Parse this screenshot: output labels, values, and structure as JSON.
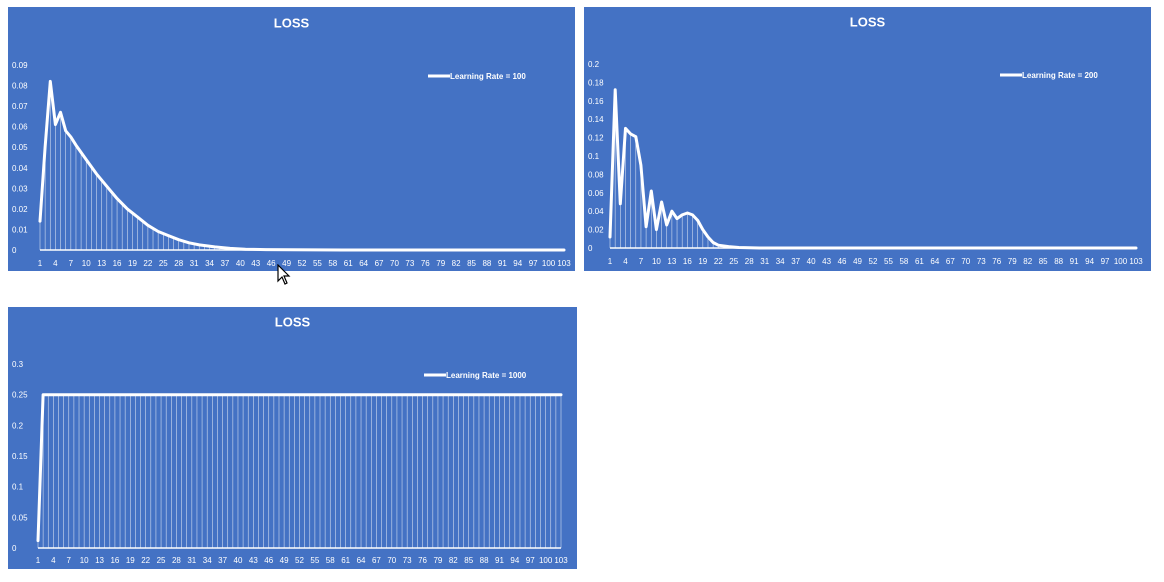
{
  "colors": {
    "panel": "#4472c4",
    "foreground": "#ffffff",
    "background": "#ffffff"
  },
  "icons": {
    "cursor": "mouse-pointer-icon"
  },
  "chart_data": [
    {
      "type": "line",
      "title": "LOSS",
      "legend": "top-right",
      "xlabel": "",
      "ylabel": "",
      "x_range": [
        1,
        103
      ],
      "ylim": [
        0,
        0.09
      ],
      "y_ticks": [
        "0",
        "0.01",
        "0.02",
        "0.03",
        "0.04",
        "0.05",
        "0.06",
        "0.07",
        "0.08",
        "0.09"
      ],
      "x_ticks": [
        "1",
        "4",
        "7",
        "10",
        "13",
        "16",
        "19",
        "22",
        "25",
        "28",
        "31",
        "34",
        "37",
        "40",
        "43",
        "46",
        "49",
        "52",
        "55",
        "58",
        "61",
        "64",
        "67",
        "70",
        "73",
        "76",
        "79",
        "82",
        "85",
        "88",
        "91",
        "94",
        "97",
        "100",
        "103"
      ],
      "series": [
        {
          "name": "Learning Rate = 100",
          "points": [
            [
              1,
              0.014
            ],
            [
              2,
              0.05
            ],
            [
              3,
              0.082
            ],
            [
              4,
              0.061
            ],
            [
              5,
              0.067
            ],
            [
              6,
              0.058
            ],
            [
              7,
              0.055
            ],
            [
              8,
              0.051
            ],
            [
              10,
              0.044
            ],
            [
              12,
              0.037
            ],
            [
              14,
              0.031
            ],
            [
              16,
              0.025
            ],
            [
              18,
              0.02
            ],
            [
              20,
              0.016
            ],
            [
              22,
              0.012
            ],
            [
              24,
              0.009
            ],
            [
              26,
              0.007
            ],
            [
              28,
              0.005
            ],
            [
              30,
              0.0035
            ],
            [
              32,
              0.0025
            ],
            [
              35,
              0.0015
            ],
            [
              38,
              0.0008
            ],
            [
              41,
              0.0004
            ],
            [
              45,
              0.0002
            ],
            [
              50,
              0.0001
            ],
            [
              60,
              0
            ],
            [
              103,
              0
            ]
          ]
        }
      ]
    },
    {
      "type": "line",
      "title": "LOSS",
      "legend": "top-right",
      "xlabel": "",
      "ylabel": "",
      "x_range": [
        1,
        103
      ],
      "ylim": [
        0,
        0.2
      ],
      "y_ticks": [
        "0",
        "0.02",
        "0.04",
        "0.06",
        "0.08",
        "0.1",
        "0.12",
        "0.14",
        "0.16",
        "0.18",
        "0.2"
      ],
      "x_ticks": [
        "1",
        "4",
        "7",
        "10",
        "13",
        "16",
        "19",
        "22",
        "25",
        "28",
        "31",
        "34",
        "37",
        "40",
        "43",
        "46",
        "49",
        "52",
        "55",
        "58",
        "61",
        "64",
        "67",
        "70",
        "73",
        "76",
        "79",
        "82",
        "85",
        "88",
        "91",
        "94",
        "97",
        "100",
        "103"
      ],
      "series": [
        {
          "name": "Learning Rate = 200",
          "points": [
            [
              1,
              0.012
            ],
            [
              2,
              0.172
            ],
            [
              3,
              0.048
            ],
            [
              4,
              0.13
            ],
            [
              5,
              0.124
            ],
            [
              6,
              0.121
            ],
            [
              7,
              0.09
            ],
            [
              8,
              0.023
            ],
            [
              9,
              0.062
            ],
            [
              10,
              0.02
            ],
            [
              11,
              0.05
            ],
            [
              12,
              0.025
            ],
            [
              13,
              0.04
            ],
            [
              14,
              0.032
            ],
            [
              15,
              0.036
            ],
            [
              16,
              0.038
            ],
            [
              17,
              0.036
            ],
            [
              18,
              0.03
            ],
            [
              19,
              0.02
            ],
            [
              20,
              0.012
            ],
            [
              21,
              0.006
            ],
            [
              22,
              0.003
            ],
            [
              24,
              0.0015
            ],
            [
              26,
              0.0005
            ],
            [
              30,
              0
            ],
            [
              103,
              0
            ]
          ]
        }
      ]
    },
    {
      "type": "line",
      "title": "LOSS",
      "legend": "top-right",
      "xlabel": "",
      "ylabel": "",
      "x_range": [
        1,
        103
      ],
      "ylim": [
        0,
        0.3
      ],
      "y_ticks": [
        "0",
        "0.05",
        "0.1",
        "0.15",
        "0.2",
        "0.25",
        "0.3"
      ],
      "x_ticks": [
        "1",
        "4",
        "7",
        "10",
        "13",
        "16",
        "19",
        "22",
        "25",
        "28",
        "31",
        "34",
        "37",
        "40",
        "43",
        "46",
        "49",
        "52",
        "55",
        "58",
        "61",
        "64",
        "67",
        "70",
        "73",
        "76",
        "79",
        "82",
        "85",
        "88",
        "91",
        "94",
        "97",
        "100",
        "103"
      ],
      "series": [
        {
          "name": "Learning Rate = 1000",
          "points": [
            [
              1,
              0.012
            ],
            [
              2,
              0.25
            ],
            [
              103,
              0.25
            ]
          ]
        }
      ]
    }
  ]
}
